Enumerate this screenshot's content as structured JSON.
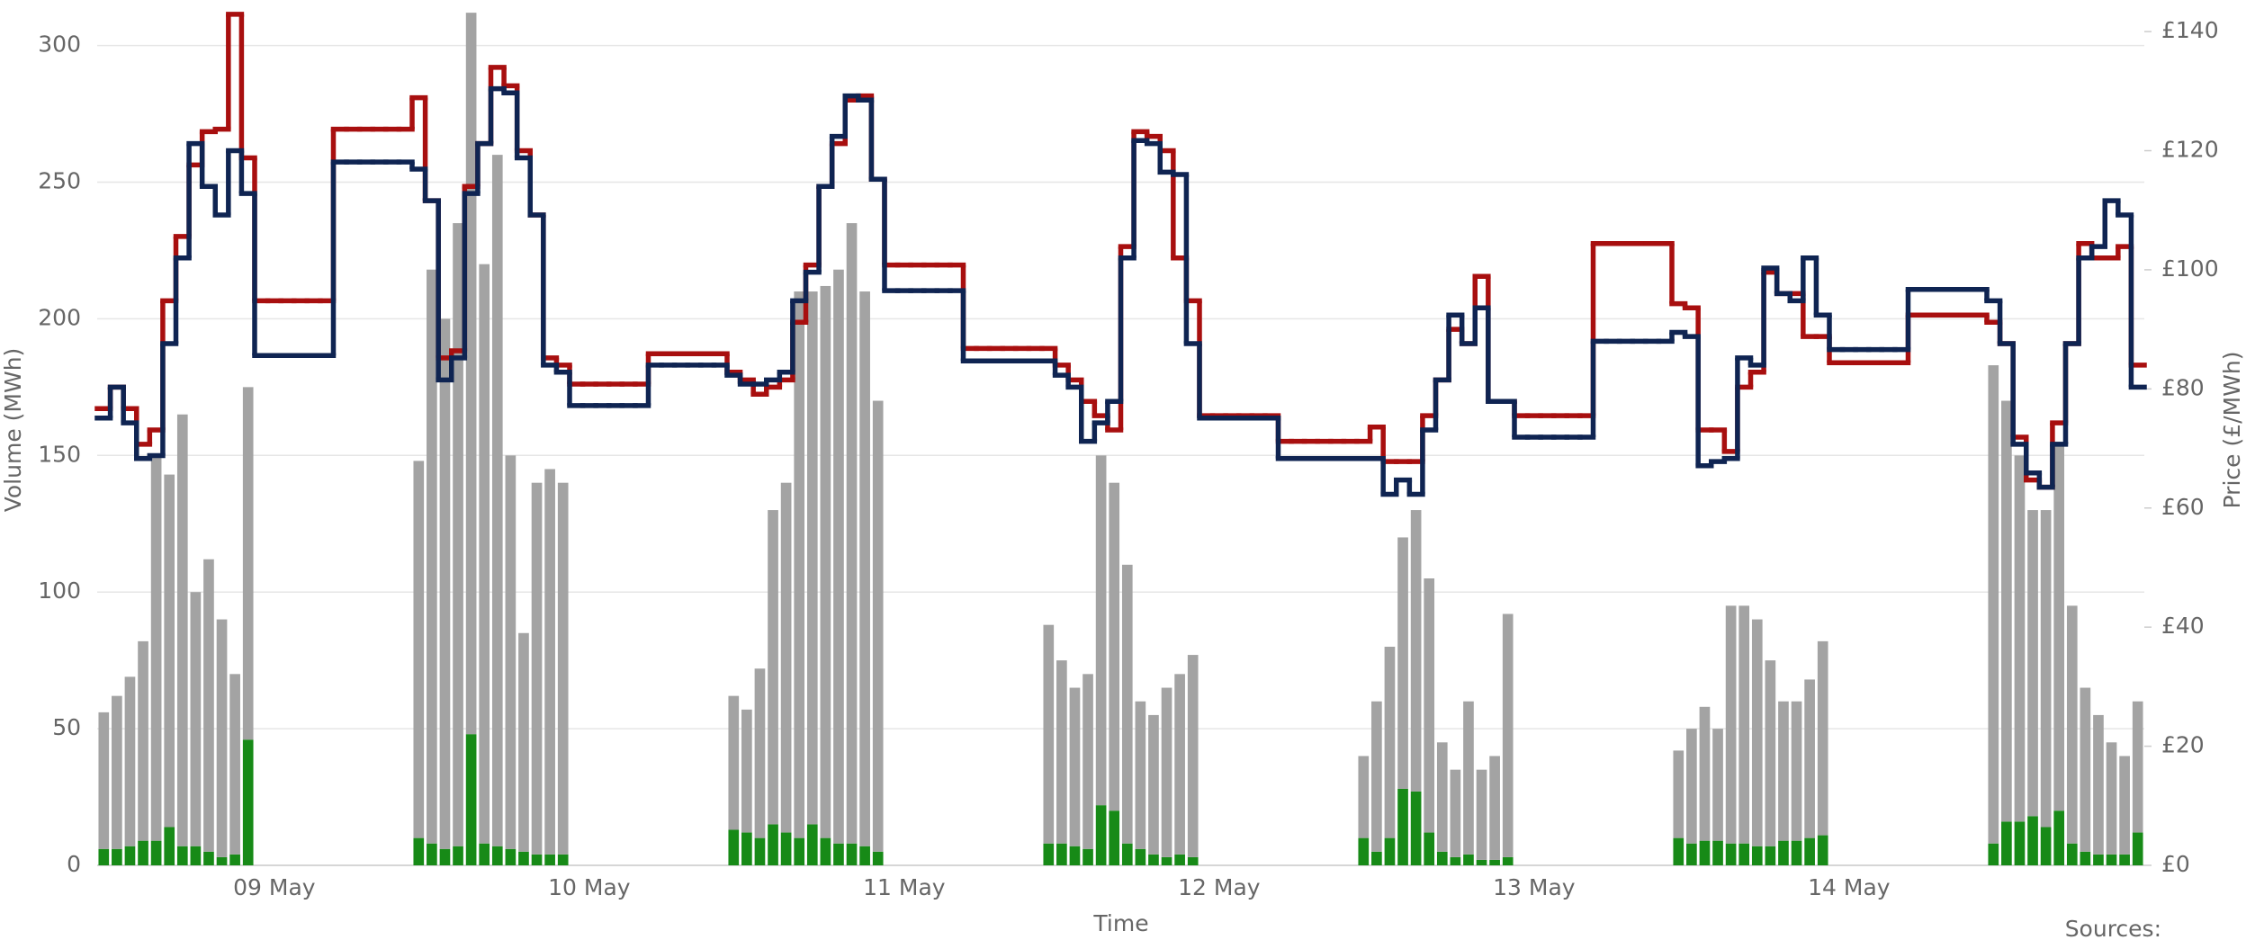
{
  "chart_data": {
    "type": "bar",
    "xlabel": "Time",
    "ylabel": "Volume (MWh)",
    "y2label": "Price (£/MWh)",
    "source": "Sources:",
    "grid": true,
    "categories": [
      null,
      null,
      null,
      null,
      null,
      null,
      null,
      null,
      null,
      null,
      null,
      null,
      null,
      "09 May",
      null,
      null,
      null,
      null,
      null,
      null,
      null,
      null,
      null,
      null,
      null,
      null,
      null,
      null,
      null,
      null,
      null,
      null,
      null,
      null,
      null,
      null,
      null,
      "10 May",
      null,
      null,
      null,
      null,
      null,
      null,
      null,
      null,
      null,
      null,
      null,
      null,
      null,
      null,
      null,
      null,
      null,
      null,
      null,
      null,
      null,
      null,
      null,
      "11 May",
      null,
      null,
      null,
      null,
      null,
      null,
      null,
      null,
      null,
      null,
      null,
      null,
      null,
      null,
      null,
      null,
      null,
      null,
      null,
      null,
      null,
      null,
      null,
      "12 May",
      null,
      null,
      null,
      null,
      null,
      null,
      null,
      null,
      null,
      null,
      null,
      null,
      null,
      null,
      null,
      null,
      null,
      null,
      null,
      null,
      null,
      null,
      null,
      "13 May",
      null,
      null,
      null,
      null,
      null,
      null,
      null,
      null,
      null,
      null,
      null,
      null,
      null,
      null,
      null,
      null,
      null,
      null,
      null,
      null,
      null,
      null,
      null,
      "14 May",
      null,
      null,
      null,
      null,
      null,
      null,
      null,
      null,
      null,
      null,
      null,
      null,
      null,
      null,
      null,
      null,
      null,
      null,
      null,
      null,
      null,
      null
    ],
    "ylim": [
      0,
      316
    ],
    "yticks": [
      0,
      50,
      100,
      150,
      200,
      250,
      300
    ],
    "y2lim": [
      0,
      145
    ],
    "y2ticks": [
      {
        "value": 0,
        "label": "£0"
      },
      {
        "value": 20,
        "label": "£20"
      },
      {
        "value": 40,
        "label": "£40"
      },
      {
        "value": 60,
        "label": "£60"
      },
      {
        "value": 80,
        "label": "£80"
      },
      {
        "value": 100,
        "label": "£100"
      },
      {
        "value": 120,
        "label": "£120"
      },
      {
        "value": 140,
        "label": "£140"
      }
    ],
    "series": [
      {
        "type": "bar",
        "color": "#178a17",
        "values": [
          6,
          6,
          7,
          9,
          9,
          14,
          7,
          7,
          5,
          3,
          4,
          46,
          null,
          null,
          null,
          null,
          null,
          null,
          null,
          null,
          null,
          null,
          null,
          null,
          10,
          8,
          6,
          7,
          48,
          8,
          7,
          6,
          5,
          4,
          4,
          4,
          null,
          null,
          null,
          null,
          null,
          null,
          null,
          null,
          null,
          null,
          null,
          null,
          13,
          12,
          10,
          15,
          12,
          10,
          15,
          10,
          8,
          8,
          7,
          5,
          null,
          null,
          null,
          null,
          null,
          null,
          null,
          null,
          null,
          null,
          null,
          null,
          8,
          8,
          7,
          6,
          22,
          20,
          8,
          6,
          4,
          3,
          4,
          3,
          null,
          null,
          null,
          null,
          null,
          null,
          null,
          null,
          null,
          null,
          null,
          null,
          10,
          5,
          10,
          28,
          27,
          12,
          5,
          3,
          4,
          2,
          2,
          3,
          null,
          null,
          null,
          null,
          null,
          null,
          null,
          null,
          null,
          null,
          null,
          null,
          10,
          8,
          9,
          9,
          8,
          8,
          7,
          7,
          9,
          9,
          10,
          11,
          null,
          null,
          null,
          null,
          null,
          null,
          null,
          null,
          null,
          null,
          null,
          null,
          8,
          16,
          16,
          18,
          14,
          20,
          8,
          5,
          4,
          4,
          4,
          12
        ]
      },
      {
        "type": "bar",
        "color": "#a3a3a3",
        "values": [
          50,
          56,
          62,
          73,
          141,
          129,
          158,
          93,
          107,
          87,
          66,
          129,
          null,
          null,
          null,
          null,
          null,
          null,
          null,
          null,
          null,
          null,
          null,
          null,
          138,
          210,
          194,
          228,
          264,
          212,
          253,
          144,
          80,
          136,
          141,
          136,
          null,
          null,
          null,
          null,
          null,
          null,
          null,
          null,
          null,
          null,
          null,
          null,
          49,
          45,
          62,
          115,
          128,
          200,
          195,
          202,
          210,
          227,
          203,
          165,
          null,
          null,
          null,
          null,
          null,
          null,
          null,
          null,
          null,
          null,
          null,
          null,
          80,
          67,
          58,
          64,
          128,
          120,
          102,
          54,
          51,
          62,
          66,
          74,
          null,
          null,
          null,
          null,
          null,
          null,
          null,
          null,
          null,
          null,
          null,
          null,
          30,
          55,
          70,
          92,
          103,
          93,
          40,
          32,
          56,
          33,
          38,
          89,
          null,
          null,
          null,
          null,
          null,
          null,
          null,
          null,
          null,
          null,
          null,
          null,
          32,
          42,
          49,
          41,
          87,
          87,
          83,
          68,
          51,
          51,
          58,
          71,
          null,
          null,
          null,
          null,
          null,
          null,
          null,
          null,
          null,
          null,
          null,
          null,
          175,
          154,
          134,
          112,
          116,
          135,
          87,
          60,
          51,
          41,
          36,
          48
        ]
      },
      {
        "type": "line",
        "axis": "y2",
        "color": "#a80f0f",
        "values": [
          76.7,
          80.3,
          76.7,
          70.7,
          73.1,
          94.8,
          105.6,
          117.6,
          123.2,
          123.6,
          142.9,
          118.8,
          94.8,
          94.8,
          94.8,
          94.8,
          94.8,
          94.8,
          123.6,
          123.6,
          123.6,
          123.6,
          123.6,
          123.6,
          128.9,
          111.6,
          85.2,
          86.4,
          114.0,
          121.2,
          134.0,
          130.9,
          120.0,
          109.2,
          85.2,
          84.0,
          80.8,
          80.8,
          80.8,
          80.8,
          80.8,
          80.8,
          85.9,
          85.9,
          85.9,
          85.9,
          85.9,
          85.9,
          82.8,
          81.5,
          79.1,
          80.3,
          81.5,
          91.2,
          100.8,
          114.0,
          121.2,
          128.5,
          129.2,
          115.2,
          100.8,
          100.8,
          100.8,
          100.8,
          100.8,
          100.8,
          86.8,
          86.8,
          86.8,
          86.8,
          86.8,
          86.8,
          86.8,
          84.0,
          81.5,
          77.9,
          75.5,
          73.1,
          103.9,
          123.2,
          122.4,
          120.0,
          102.0,
          94.8,
          75.5,
          75.5,
          75.5,
          75.5,
          75.5,
          75.5,
          71.2,
          71.2,
          71.2,
          71.2,
          71.2,
          71.2,
          71.2,
          73.6,
          67.8,
          67.8,
          67.8,
          75.5,
          81.5,
          90.0,
          87.6,
          98.9,
          77.9,
          77.9,
          75.5,
          75.5,
          75.5,
          75.5,
          75.5,
          75.5,
          104.4,
          104.4,
          104.4,
          104.4,
          104.4,
          104.4,
          94.3,
          93.6,
          73.1,
          73.1,
          69.5,
          80.3,
          82.8,
          99.6,
          96.0,
          96.0,
          88.8,
          88.8,
          84.4,
          84.4,
          84.4,
          84.4,
          84.4,
          84.4,
          92.4,
          92.4,
          92.4,
          92.4,
          92.4,
          92.4,
          91.2,
          87.6,
          71.9,
          64.7,
          63.5,
          74.3,
          87.6,
          104.4,
          102.0,
          102.0,
          103.9,
          84.0
        ]
      },
      {
        "type": "line",
        "axis": "y2",
        "color": "#0f2452",
        "values": [
          75.1,
          80.3,
          74.3,
          68.3,
          68.8,
          87.6,
          102.0,
          121.2,
          114.0,
          109.2,
          120.0,
          112.8,
          85.6,
          85.6,
          85.6,
          85.6,
          85.6,
          85.6,
          118.1,
          118.1,
          118.1,
          118.1,
          118.1,
          118.1,
          116.9,
          111.6,
          81.5,
          85.2,
          112.8,
          121.2,
          130.4,
          129.7,
          118.8,
          109.2,
          84.0,
          82.8,
          77.2,
          77.2,
          77.2,
          77.2,
          77.2,
          77.2,
          84.0,
          84.0,
          84.0,
          84.0,
          84.0,
          84.0,
          82.3,
          80.8,
          80.8,
          81.5,
          82.8,
          94.8,
          99.6,
          114.0,
          122.4,
          129.2,
          128.5,
          115.2,
          96.5,
          96.5,
          96.5,
          96.5,
          96.5,
          96.5,
          84.7,
          84.7,
          84.7,
          84.7,
          84.7,
          84.7,
          84.7,
          82.3,
          80.3,
          71.2,
          74.3,
          77.9,
          102.0,
          121.7,
          121.2,
          116.4,
          116.0,
          87.6,
          75.1,
          75.1,
          75.1,
          75.1,
          75.1,
          75.1,
          68.3,
          68.3,
          68.3,
          68.3,
          68.3,
          68.3,
          68.3,
          68.3,
          62.3,
          64.7,
          62.3,
          73.1,
          81.5,
          92.4,
          87.6,
          93.6,
          77.9,
          77.9,
          71.9,
          71.9,
          71.9,
          71.9,
          71.9,
          71.9,
          88.0,
          88.0,
          88.0,
          88.0,
          88.0,
          88.0,
          89.5,
          88.8,
          67.1,
          67.8,
          68.3,
          85.2,
          84.0,
          100.3,
          96.0,
          94.8,
          102.0,
          92.4,
          86.6,
          86.6,
          86.6,
          86.6,
          86.6,
          86.6,
          96.7,
          96.7,
          96.7,
          96.7,
          96.7,
          96.7,
          94.8,
          87.6,
          70.7,
          65.9,
          63.5,
          70.7,
          87.6,
          102.0,
          103.9,
          111.6,
          109.2,
          80.3
        ]
      }
    ]
  }
}
